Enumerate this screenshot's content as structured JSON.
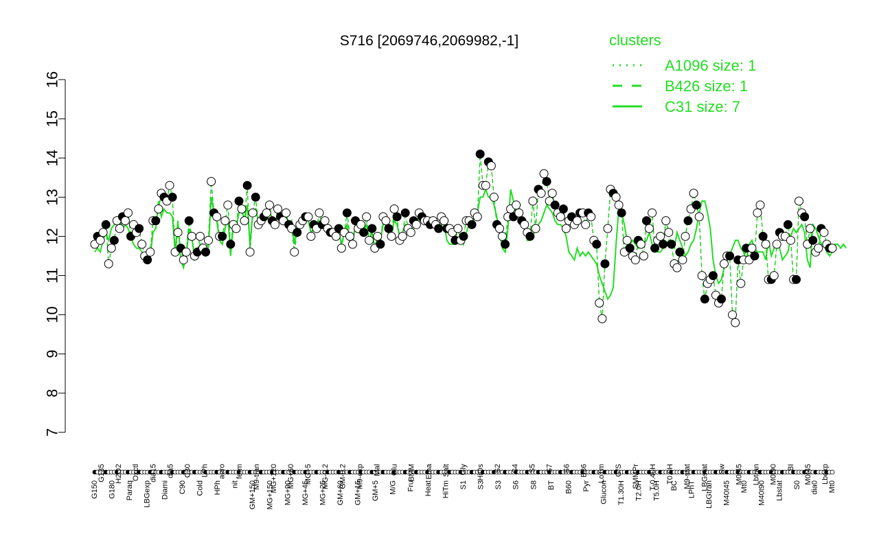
{
  "chart_data": {
    "type": "scatter",
    "title": "S716 [2069746,2069982,-1]",
    "xlabel": "",
    "ylabel": "",
    "ylim": [
      7,
      16
    ],
    "yticks": [
      7,
      8,
      9,
      10,
      11,
      12,
      13,
      14,
      15,
      16
    ],
    "legend": {
      "title": "clusters",
      "placement": "top-right",
      "entries": [
        {
          "label": "A1096 size: 1",
          "style": "dotted"
        },
        {
          "label": "B426 size: 1",
          "style": "dashed"
        },
        {
          "label": "C31 size: 7",
          "style": "solid"
        }
      ]
    },
    "colors": {
      "line": "#22dd22",
      "point_fill": "#ffffff",
      "point_fill_alt": "#000000",
      "point_stroke": "#000000",
      "legend": "#22dd22"
    },
    "xtick_labels_top": [
      "G135",
      "H2O2",
      "Oxctl",
      "dia15",
      "dia5",
      "C30",
      "LPh",
      "aero",
      "ferm",
      "M9-tran",
      "MG+120",
      "MG+60",
      "MG+5",
      "MG-0.2",
      "GM-0.2",
      "M9-exp",
      "Mal",
      "Glu",
      "BMM",
      "Etha",
      "Salt",
      "Gly",
      "HiOs",
      "S2",
      "S4",
      "S5",
      "S7",
      "S6",
      "B36",
      "LoTm",
      "G/S",
      "SMMPr",
      "T-0.40H",
      "T0.0H",
      "M9-stat",
      "LBGstat",
      "Sw",
      "M0t45",
      "Lbtran",
      "M0t90",
      "BI",
      "M0t45",
      "Lbexp"
    ],
    "xtick_labels_bottom": [
      "G150",
      "G180",
      "Paraq",
      "LBGexp",
      "Diami",
      "C90",
      "Cold",
      "HPh",
      "nit",
      "GM+150",
      "MG+150",
      "MG+90",
      "MG+45",
      "MG+25",
      "GM+60",
      "GM+15",
      "GM+5",
      "M/G",
      "Fru",
      "Heat",
      "HiTm",
      "S1",
      "S3",
      "S3",
      "S6",
      "S8",
      "BT",
      "B60",
      "Pyr",
      "Glucon",
      "T1.30H",
      "T2.0H",
      "T5.0H",
      "BC",
      "LPhT",
      "LBGtran",
      "M40t45",
      "Mt0",
      "M40t90",
      "Lbstat",
      "S0",
      "dia0",
      "Mt0"
    ],
    "series": [
      {
        "values": [
          11.8,
          12.0,
          11.9,
          12.1,
          12.3,
          11.3,
          11.7,
          11.9,
          12.4,
          12.2,
          12.5,
          12.4,
          12.6,
          12.0,
          12.3,
          12.1,
          12.2,
          11.8,
          11.5,
          11.4,
          11.6,
          12.4,
          12.4,
          12.7,
          13.1,
          13.0,
          12.9,
          13.3,
          13.0,
          11.6,
          12.1,
          11.7,
          11.4,
          11.6,
          12.4,
          12.0,
          11.5,
          11.6,
          12.0,
          11.7,
          11.6,
          11.9,
          13.4,
          12.6,
          12.5,
          12.0,
          12.0,
          12.4,
          12.8,
          11.8,
          12.3,
          12.2,
          12.9,
          12.7,
          12.4,
          13.3,
          11.6,
          12.6,
          13.0,
          12.3,
          12.4,
          12.5,
          12.6,
          12.8,
          12.4,
          12.3,
          12.7,
          12.5,
          12.4,
          12.6,
          12.3,
          12.2,
          11.6,
          12.1,
          12.3,
          12.4,
          12.5,
          12.5,
          12.0,
          12.3,
          12.2,
          12.6,
          12.3,
          12.4,
          12.2,
          12.1,
          12.1,
          12.0,
          12.2,
          11.7,
          12.1,
          12.6,
          12.0,
          11.8,
          12.4,
          12.2,
          12.3,
          12.1,
          12.5,
          11.9,
          12.2,
          11.7,
          12.0,
          11.8,
          12.5,
          12.4,
          12.2,
          12.0,
          12.7,
          12.5,
          11.9,
          12.0,
          12.6,
          12.2,
          12.1,
          12.4,
          12.3,
          12.6,
          12.5,
          12.4,
          12.4,
          12.3,
          12.4,
          12.3,
          12.2,
          12.5,
          12.4,
          12.2,
          12.2,
          12.1,
          11.9,
          12.2,
          11.9,
          12.0,
          12.4,
          12.4,
          12.3,
          12.6,
          12.5,
          14.1,
          13.3,
          13.3,
          13.9,
          13.8,
          13.0,
          12.3,
          12.2,
          12.0,
          11.8,
          12.5,
          12.7,
          12.5,
          12.8,
          12.6,
          12.4,
          12.3,
          12.1,
          12.0,
          12.9,
          12.2,
          13.2,
          13.1,
          13.6,
          13.4,
          12.9,
          13.1,
          12.8,
          12.6,
          12.5,
          12.7,
          12.2,
          12.4,
          12.5,
          12.3,
          12.4,
          12.6,
          12.6,
          12.3,
          12.6,
          12.5,
          11.9,
          11.8,
          10.3,
          9.9,
          11.3,
          12.2,
          13.2,
          13.1,
          13.0,
          12.8,
          12.6,
          11.6,
          11.9,
          11.7,
          11.5,
          11.4,
          11.9,
          11.8,
          11.5,
          12.4,
          12.2,
          12.6,
          11.7,
          11.9,
          12.0,
          11.8,
          12.4,
          12.1,
          11.8,
          11.3,
          11.2,
          11.6,
          11.4,
          12.0,
          12.4,
          12.7,
          13.1,
          12.8,
          12.5,
          11.0,
          10.4,
          10.8,
          10.9,
          11.0,
          10.5,
          10.3,
          10.4,
          11.3,
          11.5,
          11.5,
          10.0,
          9.8,
          11.4,
          10.8,
          11.4,
          11.7,
          11.4,
          11.7,
          11.5,
          12.6,
          12.8,
          12.0,
          11.8,
          10.9,
          10.9,
          11.0,
          11.8,
          12.1,
          12.0,
          12.0,
          12.3,
          11.9,
          10.9,
          10.9,
          12.9,
          12.6,
          12.5,
          11.8,
          12.2,
          11.9,
          11.6,
          11.7,
          12.2,
          12.1,
          11.8,
          11.7,
          11.7
        ]
      },
      {
        "values": [
          11.6,
          11.7,
          11.6,
          11.9,
          12.1,
          11.9,
          12.2,
          12.3,
          12.4,
          12.5,
          12.2,
          12.3,
          12.2,
          12.0,
          11.8,
          11.7,
          11.7,
          11.6,
          11.5,
          11.4,
          11.5,
          12.1,
          12.2,
          12.9,
          12.5,
          12.7,
          12.6,
          12.6,
          12.5,
          11.6,
          12.4,
          11.4,
          11.2,
          11.5,
          12.2,
          12.0,
          11.4,
          11.5,
          11.8,
          11.6,
          11.5,
          11.7,
          13.0,
          12.6,
          12.4,
          11.9,
          11.8,
          12.2,
          12.5,
          11.5,
          12.3,
          12.2,
          12.6,
          12.7,
          12.4,
          12.8,
          11.8,
          12.6,
          12.7,
          12.4,
          12.4,
          12.5,
          12.6,
          12.6,
          12.5,
          12.3,
          12.6,
          12.5,
          12.5,
          12.6,
          12.3,
          12.4,
          11.8,
          12.3,
          12.4,
          12.3,
          12.5,
          12.4,
          12.1,
          12.2,
          12.3,
          12.4,
          12.3,
          12.3,
          12.2,
          12.1,
          12.1,
          12.0,
          12.1,
          11.8,
          12.1,
          12.3,
          11.9,
          11.8,
          12.3,
          12.1,
          12.2,
          12.1,
          12.3,
          11.9,
          12.1,
          11.7,
          12.0,
          11.9,
          12.3,
          12.3,
          12.1,
          12.0,
          12.4,
          12.3,
          12.0,
          12.1,
          12.3,
          12.2,
          12.1,
          12.2,
          12.3,
          12.4,
          12.4,
          12.3,
          12.3,
          12.3,
          12.3,
          12.2,
          12.2,
          12.3,
          12.3,
          11.9,
          11.8,
          11.8,
          11.8,
          11.9,
          12.0,
          11.8,
          12.1,
          12.3,
          12.3,
          12.5,
          12.6,
          13.0,
          13.0,
          13.2,
          13.0,
          13.0,
          12.8,
          12.5,
          12.1,
          11.7,
          11.6,
          12.2,
          13.2,
          12.9,
          12.8,
          12.7,
          12.5,
          12.2,
          11.9,
          11.9,
          12.0,
          12.2,
          12.3,
          12.4,
          12.6,
          12.8,
          12.7,
          12.6,
          12.4,
          12.3,
          12.3,
          12.2,
          12.0,
          11.6,
          11.5,
          11.4,
          11.7,
          11.5,
          11.6,
          11.5,
          11.6,
          11.5,
          11.4,
          11.3,
          11.0,
          10.8,
          10.6,
          10.4,
          10.5,
          10.7,
          11.8,
          12.7,
          12.6,
          12.3,
          11.9,
          11.8,
          11.9,
          11.8,
          11.7,
          11.9,
          11.8,
          11.9,
          12.1,
          11.8,
          11.7,
          11.6,
          11.6,
          11.7,
          11.8,
          11.9,
          11.8,
          11.7,
          12.1,
          11.9,
          11.7,
          11.5,
          11.6,
          11.8,
          11.9,
          12.2,
          12.6,
          12.9,
          12.9,
          12.6,
          12.2,
          11.4,
          11.0,
          10.8,
          10.9,
          11.2,
          11.4,
          11.5,
          11.7,
          11.9,
          11.9,
          11.7,
          11.6,
          11.4,
          11.8,
          11.9,
          11.7,
          11.6,
          11.6,
          11.6,
          11.4,
          11.9,
          11.5,
          11.7,
          11.8,
          11.7,
          11.4,
          11.5,
          11.6,
          12.0,
          12.2,
          12.1,
          12.2,
          12.3,
          12.1,
          11.4,
          11.2,
          12.3,
          12.2,
          12.0,
          11.8,
          11.8,
          11.6,
          11.5,
          11.6,
          11.8,
          11.8,
          11.7,
          11.8,
          11.7
        ]
      },
      {
        "values": [
          11.6,
          11.7,
          11.6,
          11.9,
          12.1,
          11.9,
          12.2,
          12.3,
          12.4,
          12.5,
          12.2,
          12.3,
          12.2,
          12.0,
          11.8,
          11.7,
          11.7,
          11.6,
          11.5,
          11.4,
          11.5,
          12.1,
          12.2,
          12.9,
          12.5,
          12.7,
          12.6,
          12.6,
          12.5,
          11.6,
          12.4,
          11.4,
          11.2,
          11.5,
          12.2,
          12.0,
          11.4,
          11.5,
          11.8,
          11.6,
          11.5,
          11.7,
          13.0,
          12.6,
          12.4,
          11.9,
          11.8,
          12.2,
          12.5,
          11.5,
          12.3,
          12.2,
          12.6,
          12.7,
          12.4,
          12.8,
          11.8,
          12.6,
          12.7,
          12.4,
          12.4,
          12.5,
          12.6,
          12.6,
          12.5,
          12.3,
          12.6,
          12.5,
          12.5,
          12.6,
          12.3,
          12.4,
          11.8,
          12.3,
          12.4,
          12.3,
          12.5,
          12.4,
          12.1,
          12.2,
          12.3,
          12.4,
          12.3,
          12.3,
          12.2,
          12.1,
          12.1,
          12.0,
          12.1,
          11.8,
          12.1,
          12.3,
          11.9,
          11.8,
          12.3,
          12.1,
          12.2,
          12.1,
          12.3,
          11.9,
          12.1,
          11.7,
          12.0,
          11.9,
          12.3,
          12.3,
          12.1,
          12.0,
          12.4,
          12.3,
          12.0,
          12.1,
          12.3,
          12.2,
          12.1,
          12.2,
          12.3,
          12.4,
          12.4,
          12.3,
          12.3,
          12.3,
          12.3,
          12.2,
          12.2,
          12.3,
          12.3,
          11.9,
          11.8,
          11.8,
          11.8,
          11.9,
          12.0,
          11.8,
          12.1,
          12.3,
          12.3,
          12.5,
          12.6,
          13.0,
          13.0,
          13.2,
          13.0,
          13.0,
          12.8,
          12.5,
          12.1,
          11.7,
          11.6,
          12.2,
          13.2,
          12.9,
          12.8,
          12.7,
          12.5,
          12.2,
          11.9,
          11.9,
          12.0,
          12.2,
          12.3,
          12.4,
          12.6,
          12.8,
          12.7,
          12.6,
          12.4,
          12.3,
          12.3,
          12.2,
          12.0,
          11.6,
          11.5,
          11.4,
          11.7,
          11.5,
          11.6,
          11.5,
          11.6,
          11.5,
          11.4,
          11.3,
          11.0,
          10.8,
          10.6,
          10.4,
          10.5,
          10.7,
          11.8,
          12.7,
          12.6,
          12.3,
          11.9,
          11.8,
          11.9,
          11.8,
          11.7,
          11.9,
          11.8,
          11.9,
          12.1,
          11.8,
          11.7,
          11.6,
          11.6,
          11.7,
          11.8,
          11.9,
          11.8,
          11.7,
          12.1,
          11.9,
          11.7,
          11.5,
          11.6,
          11.8,
          11.9,
          12.2,
          12.6,
          12.9,
          12.9,
          12.6,
          12.2,
          11.4,
          11.0,
          10.8,
          10.9,
          11.2,
          11.4,
          11.5,
          11.7,
          11.9,
          11.9,
          11.7,
          11.6,
          11.4,
          11.8,
          11.9,
          11.7,
          11.6,
          11.6,
          11.6,
          11.4,
          11.9,
          11.5,
          11.7,
          11.8,
          11.7,
          11.4,
          11.5,
          11.6,
          12.0,
          12.2,
          12.1,
          12.2,
          12.3,
          12.1,
          11.4,
          11.2,
          12.3,
          12.2,
          12.0,
          11.8,
          11.8,
          11.6,
          11.5,
          11.6,
          11.8,
          11.8,
          11.7,
          11.8,
          11.7
        ]
      }
    ]
  }
}
